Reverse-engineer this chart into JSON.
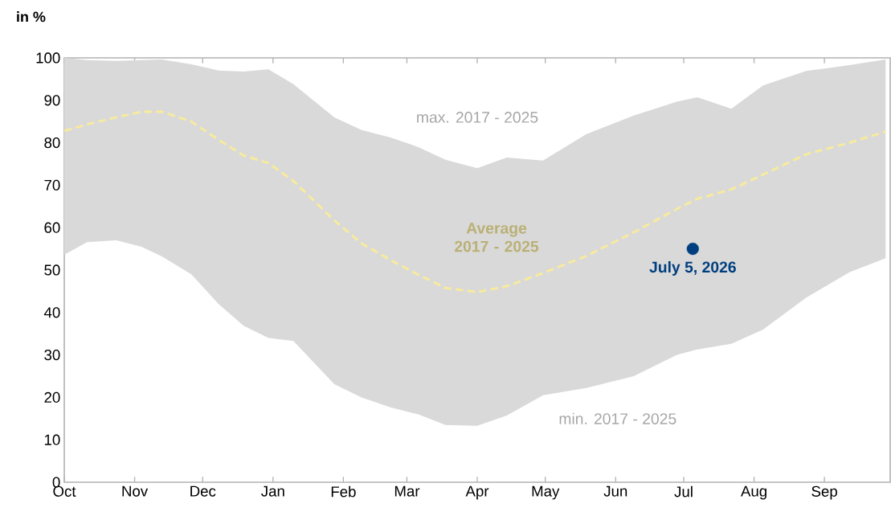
{
  "chart_data": {
    "type": "line",
    "ylabel": "in %",
    "xlim": [
      "2025-10-01",
      "2026-09-30"
    ],
    "ylim": [
      0,
      100
    ],
    "xticks": [
      {
        "value": "2025-10-01",
        "label": "Oct"
      },
      {
        "value": "2025-11-01",
        "label": "Nov"
      },
      {
        "value": "2025-12-01",
        "label": "Dec"
      },
      {
        "value": "2026-01-01",
        "label": "Jan"
      },
      {
        "value": "2026-02-01",
        "label": "Feb"
      },
      {
        "value": "2026-03-01",
        "label": "Mar"
      },
      {
        "value": "2026-04-01",
        "label": "Apr"
      },
      {
        "value": "2026-05-01",
        "label": "May"
      },
      {
        "value": "2026-06-01",
        "label": "Jun"
      },
      {
        "value": "2026-07-01",
        "label": "Jul"
      },
      {
        "value": "2026-08-01",
        "label": "Aug"
      },
      {
        "value": "2026-09-01",
        "label": "Sep"
      }
    ],
    "yticks": [
      0,
      10,
      20,
      30,
      40,
      50,
      60,
      70,
      80,
      90,
      100
    ],
    "grid": false,
    "series": [
      {
        "name": "Average 2017 - 2025",
        "color": "#f8eb9c",
        "line_style": "dashed",
        "marker": "none",
        "x": [
          "2025-10-01",
          "2025-10-11",
          "2025-10-24",
          "2025-11-04",
          "2025-11-13",
          "2025-11-26",
          "2025-12-08",
          "2025-12-19",
          "2025-12-30",
          "2026-01-10",
          "2026-01-28",
          "2026-02-09",
          "2026-02-22",
          "2026-03-06",
          "2026-03-18",
          "2026-04-01",
          "2026-04-14",
          "2026-04-30",
          "2026-05-19",
          "2026-06-09",
          "2026-06-28",
          "2026-07-07",
          "2026-07-22",
          "2026-08-05",
          "2026-08-24",
          "2026-09-12",
          "2026-09-28"
        ],
        "values": [
          82.8,
          84.3,
          86,
          87.3,
          87.3,
          85,
          80.7,
          77,
          75.2,
          71,
          61.7,
          56.3,
          52.3,
          48.9,
          45.8,
          44.8,
          46.2,
          49.3,
          53.3,
          58.9,
          64.4,
          66.8,
          69,
          72.5,
          77.3,
          80,
          82.6
        ],
        "upper": [
          100,
          99.5,
          99.3,
          99.5,
          99.6,
          98.5,
          97,
          96.8,
          97.3,
          93.8,
          86,
          83,
          81.2,
          79,
          76,
          74,
          76.5,
          75.8,
          82,
          86.4,
          89.7,
          90.7,
          88,
          93.5,
          96.9,
          98.3,
          99.6
        ],
        "lower": [
          53.6,
          56.6,
          57,
          55.5,
          53.2,
          49,
          42,
          36.9,
          34,
          33.3,
          23.1,
          20,
          17.6,
          16,
          13.5,
          13.3,
          15.7,
          20.5,
          22.2,
          25,
          30,
          31.3,
          32.6,
          36,
          43.5,
          49.5,
          52.8
        ]
      },
      {
        "name": "July 5, 2026",
        "type": "scatter",
        "color": "#003f7f",
        "marker": "circle",
        "x": [
          "2026-07-05"
        ],
        "values": [
          55
        ]
      }
    ],
    "annotations": [
      "max. 2017 - 2025",
      "min. 2017 - 2025"
    ]
  }
}
